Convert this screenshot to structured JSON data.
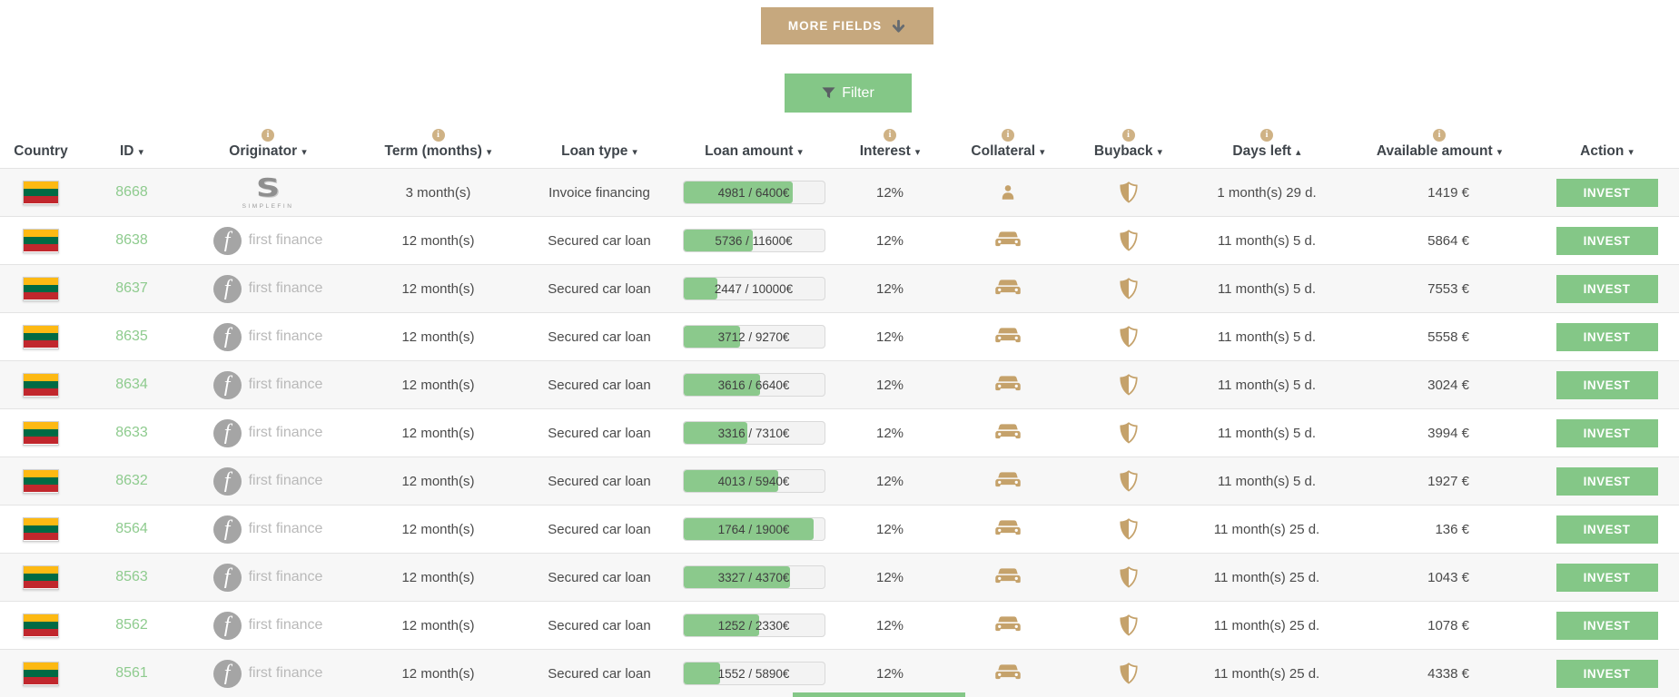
{
  "page": {
    "more_fields_label": "MORE FIELDS",
    "filter_label": "Filter",
    "invest_label": "INVEST"
  },
  "colors": {
    "tan_button": "#c6a87e",
    "green_button": "#84c787",
    "progress_fill": "#8bc98c",
    "icon_tan": "#c5a26b",
    "id_green": "#8ecb8e"
  },
  "header": {
    "columns": [
      {
        "label": "Country",
        "info": false,
        "sort": ""
      },
      {
        "label": "ID",
        "info": false,
        "sort": "desc"
      },
      {
        "label": "Originator",
        "info": true,
        "sort": "desc"
      },
      {
        "label": "Term (months)",
        "info": true,
        "sort": "desc"
      },
      {
        "label": "Loan type",
        "info": false,
        "sort": "desc"
      },
      {
        "label": "Loan amount",
        "info": false,
        "sort": "desc"
      },
      {
        "label": "Interest",
        "info": true,
        "sort": "desc"
      },
      {
        "label": "Collateral",
        "info": true,
        "sort": "desc"
      },
      {
        "label": "Buyback",
        "info": true,
        "sort": "desc"
      },
      {
        "label": "Days left",
        "info": true,
        "sort": "asc"
      },
      {
        "label": "Available amount",
        "info": true,
        "sort": "desc"
      },
      {
        "label": "Action",
        "info": false,
        "sort": "desc"
      }
    ]
  },
  "rows": [
    {
      "country": "Lithuania",
      "id": "8668",
      "originator": "simplefin",
      "originator_label": "SIMPLEFIN",
      "term": "3 month(s)",
      "loan_type": "Invoice financing",
      "funded": 4981,
      "total": 6400,
      "amount_label": "4981 / 6400€",
      "interest": "12%",
      "collateral": "person",
      "buyback": "shield",
      "days_left": "1 month(s) 29 d.",
      "available": "1419 €"
    },
    {
      "country": "Lithuania",
      "id": "8638",
      "originator": "first-finance",
      "originator_label": "first finance",
      "term": "12 month(s)",
      "loan_type": "Secured car loan",
      "funded": 5736,
      "total": 11600,
      "amount_label": "5736 / 11600€",
      "interest": "12%",
      "collateral": "car",
      "buyback": "shield",
      "days_left": "11 month(s) 5 d.",
      "available": "5864 €"
    },
    {
      "country": "Lithuania",
      "id": "8637",
      "originator": "first-finance",
      "originator_label": "first finance",
      "term": "12 month(s)",
      "loan_type": "Secured car loan",
      "funded": 2447,
      "total": 10000,
      "amount_label": "2447 / 10000€",
      "interest": "12%",
      "collateral": "car",
      "buyback": "shield",
      "days_left": "11 month(s) 5 d.",
      "available": "7553 €"
    },
    {
      "country": "Lithuania",
      "id": "8635",
      "originator": "first-finance",
      "originator_label": "first finance",
      "term": "12 month(s)",
      "loan_type": "Secured car loan",
      "funded": 3712,
      "total": 9270,
      "amount_label": "3712 / 9270€",
      "interest": "12%",
      "collateral": "car",
      "buyback": "shield",
      "days_left": "11 month(s) 5 d.",
      "available": "5558 €"
    },
    {
      "country": "Lithuania",
      "id": "8634",
      "originator": "first-finance",
      "originator_label": "first finance",
      "term": "12 month(s)",
      "loan_type": "Secured car loan",
      "funded": 3616,
      "total": 6640,
      "amount_label": "3616 / 6640€",
      "interest": "12%",
      "collateral": "car",
      "buyback": "shield",
      "days_left": "11 month(s) 5 d.",
      "available": "3024 €"
    },
    {
      "country": "Lithuania",
      "id": "8633",
      "originator": "first-finance",
      "originator_label": "first finance",
      "term": "12 month(s)",
      "loan_type": "Secured car loan",
      "funded": 3316,
      "total": 7310,
      "amount_label": "3316 / 7310€",
      "interest": "12%",
      "collateral": "car",
      "buyback": "shield",
      "days_left": "11 month(s) 5 d.",
      "available": "3994 €"
    },
    {
      "country": "Lithuania",
      "id": "8632",
      "originator": "first-finance",
      "originator_label": "first finance",
      "term": "12 month(s)",
      "loan_type": "Secured car loan",
      "funded": 4013,
      "total": 5940,
      "amount_label": "4013 / 5940€",
      "interest": "12%",
      "collateral": "car",
      "buyback": "shield",
      "days_left": "11 month(s) 5 d.",
      "available": "1927 €"
    },
    {
      "country": "Lithuania",
      "id": "8564",
      "originator": "first-finance",
      "originator_label": "first finance",
      "term": "12 month(s)",
      "loan_type": "Secured car loan",
      "funded": 1764,
      "total": 1900,
      "amount_label": "1764 / 1900€",
      "interest": "12%",
      "collateral": "car",
      "buyback": "shield",
      "days_left": "11 month(s) 25 d.",
      "available": "136 €"
    },
    {
      "country": "Lithuania",
      "id": "8563",
      "originator": "first-finance",
      "originator_label": "first finance",
      "term": "12 month(s)",
      "loan_type": "Secured car loan",
      "funded": 3327,
      "total": 4370,
      "amount_label": "3327 / 4370€",
      "interest": "12%",
      "collateral": "car",
      "buyback": "shield",
      "days_left": "11 month(s) 25 d.",
      "available": "1043 €"
    },
    {
      "country": "Lithuania",
      "id": "8562",
      "originator": "first-finance",
      "originator_label": "first finance",
      "term": "12 month(s)",
      "loan_type": "Secured car loan",
      "funded": 1252,
      "total": 2330,
      "amount_label": "1252 / 2330€",
      "interest": "12%",
      "collateral": "car",
      "buyback": "shield",
      "days_left": "11 month(s) 25 d.",
      "available": "1078 €"
    },
    {
      "country": "Lithuania",
      "id": "8561",
      "originator": "first-finance",
      "originator_label": "first finance",
      "term": "12 month(s)",
      "loan_type": "Secured car loan",
      "funded": 1552,
      "total": 5890,
      "amount_label": "1552 / 5890€",
      "interest": "12%",
      "collateral": "car",
      "buyback": "shield",
      "days_left": "11 month(s) 25 d.",
      "available": "4338 €"
    }
  ]
}
